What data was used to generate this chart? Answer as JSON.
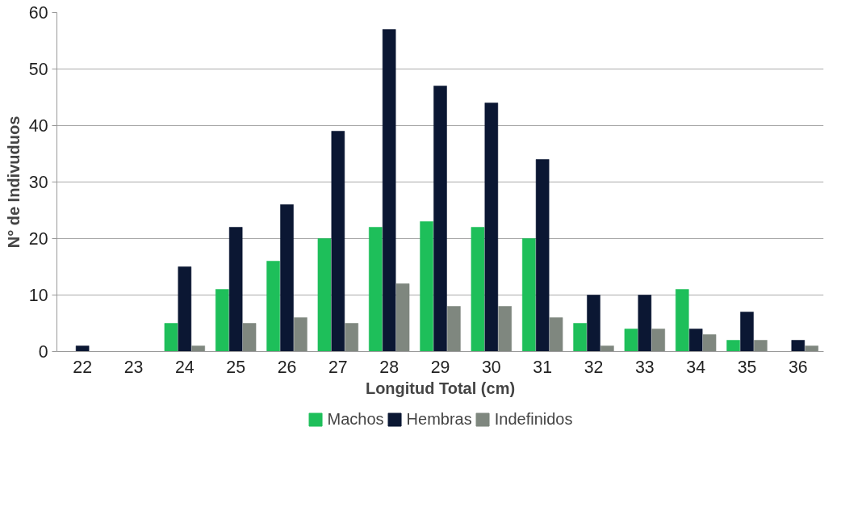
{
  "chart_data": {
    "type": "bar",
    "xlabel": "Longitud Total (cm)",
    "ylabel": "N° de Indivuduos",
    "categories": [
      "22",
      "23",
      "24",
      "25",
      "26",
      "27",
      "28",
      "29",
      "30",
      "31",
      "32",
      "33",
      "34",
      "35",
      "36"
    ],
    "series": [
      {
        "name": "Machos",
        "color": "#1ebf5a",
        "values": [
          0,
          0,
          5,
          11,
          16,
          20,
          22,
          23,
          22,
          20,
          5,
          4,
          11,
          2,
          0
        ]
      },
      {
        "name": "Hembras",
        "color": "#0b1733",
        "values": [
          1,
          0,
          15,
          22,
          26,
          39,
          57,
          47,
          44,
          34,
          10,
          10,
          4,
          7,
          2
        ]
      },
      {
        "name": "Indefinidos",
        "color": "#7f877f",
        "values": [
          0,
          0,
          1,
          5,
          6,
          5,
          12,
          8,
          8,
          6,
          1,
          4,
          3,
          2,
          1
        ]
      }
    ],
    "ylim": [
      0,
      60
    ],
    "yticks": [
      0,
      10,
      20,
      30,
      40,
      50,
      60
    ],
    "grid": "y",
    "legend": "bottom"
  }
}
